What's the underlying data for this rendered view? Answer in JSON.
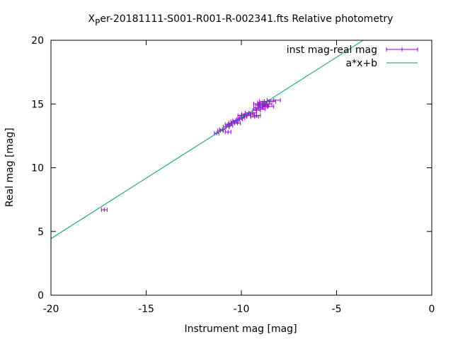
{
  "chart_data": {
    "type": "scatter",
    "title_main": "X",
    "title_sub": "P",
    "title_rest": "er-20181111-S001-R001-R-002341.fts Relative photometry",
    "xlabel": "Instrument mag [mag]",
    "ylabel": "Real mag [mag]",
    "xlim": [
      -20,
      0
    ],
    "ylim": [
      0,
      20
    ],
    "xticks": [
      -20,
      -15,
      -10,
      -5,
      0
    ],
    "yticks": [
      0,
      5,
      10,
      15,
      20
    ],
    "grid": false,
    "legend_position": "top-right",
    "series": [
      {
        "name": "inst mag-real mag",
        "color": "#9400d3",
        "style": "errorbars",
        "points": [
          {
            "x": -17.2,
            "y": 6.7,
            "xerr": 0.15
          },
          {
            "x": -11.3,
            "y": 12.7,
            "xerr": 0.12
          },
          {
            "x": -11.1,
            "y": 12.9,
            "xerr": 0.15
          },
          {
            "x": -11.0,
            "y": 13.0,
            "xerr": 0.15
          },
          {
            "x": -10.7,
            "y": 12.8,
            "xerr": 0.15
          },
          {
            "x": -10.8,
            "y": 13.2,
            "xerr": 0.15
          },
          {
            "x": -10.7,
            "y": 13.4,
            "xerr": 0.15
          },
          {
            "x": -10.6,
            "y": 13.3,
            "xerr": 0.15
          },
          {
            "x": -10.5,
            "y": 13.5,
            "xerr": 0.15
          },
          {
            "x": -10.4,
            "y": 13.6,
            "xerr": 0.15
          },
          {
            "x": -10.3,
            "y": 13.7,
            "xerr": 0.15
          },
          {
            "x": -10.2,
            "y": 13.5,
            "xerr": 0.15
          },
          {
            "x": -10.1,
            "y": 13.8,
            "xerr": 0.15
          },
          {
            "x": -10.0,
            "y": 13.9,
            "xerr": 0.18
          },
          {
            "x": -9.9,
            "y": 14.0,
            "xerr": 0.18
          },
          {
            "x": -10.0,
            "y": 14.1,
            "xerr": 0.18
          },
          {
            "x": -9.8,
            "y": 14.2,
            "xerr": 0.18
          },
          {
            "x": -9.7,
            "y": 14.1,
            "xerr": 0.18
          },
          {
            "x": -9.6,
            "y": 14.3,
            "xerr": 0.2
          },
          {
            "x": -9.5,
            "y": 14.2,
            "xerr": 0.2
          },
          {
            "x": -9.4,
            "y": 14.3,
            "xerr": 0.2
          },
          {
            "x": -9.3,
            "y": 14.0,
            "xerr": 0.2
          },
          {
            "x": -9.2,
            "y": 14.1,
            "xerr": 0.2
          },
          {
            "x": -9.2,
            "y": 14.5,
            "xerr": 0.2
          },
          {
            "x": -9.1,
            "y": 14.7,
            "xerr": 0.25
          },
          {
            "x": -9.1,
            "y": 15.0,
            "xerr": 0.25
          },
          {
            "x": -9.0,
            "y": 14.6,
            "xerr": 0.25
          },
          {
            "x": -9.0,
            "y": 14.9,
            "xerr": 0.25
          },
          {
            "x": -8.9,
            "y": 14.8,
            "xerr": 0.25
          },
          {
            "x": -8.9,
            "y": 15.1,
            "xerr": 0.25
          },
          {
            "x": -8.8,
            "y": 14.9,
            "xerr": 0.25
          },
          {
            "x": -8.8,
            "y": 15.2,
            "xerr": 0.25
          },
          {
            "x": -8.7,
            "y": 15.0,
            "xerr": 0.3
          },
          {
            "x": -8.6,
            "y": 14.8,
            "xerr": 0.3
          },
          {
            "x": -8.5,
            "y": 15.2,
            "xerr": 0.3
          },
          {
            "x": -8.3,
            "y": 15.3,
            "xerr": 0.35
          }
        ]
      },
      {
        "name": "a*x+b",
        "color": "#009e73",
        "style": "line",
        "line": {
          "x": [
            -20,
            -3.6
          ],
          "y": [
            4.44,
            20
          ]
        }
      }
    ]
  }
}
